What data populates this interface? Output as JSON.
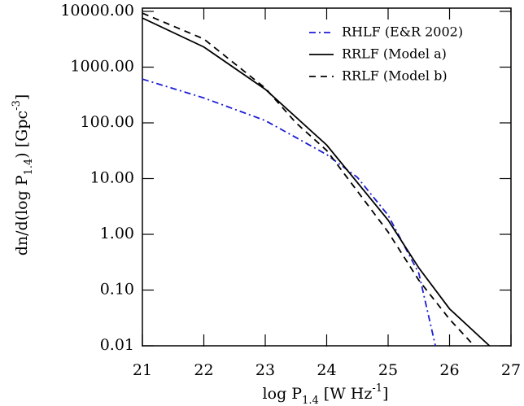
{
  "chart_data": {
    "type": "line",
    "xlabel": [
      "log P",
      "1.4",
      " [W Hz",
      "-1",
      "]"
    ],
    "ylabel": [
      "dn/d(log P",
      "1.4",
      ") [Gpc",
      "-3",
      "]"
    ],
    "xlim": [
      21,
      27
    ],
    "xticks": [
      21,
      22,
      23,
      24,
      25,
      26,
      27
    ],
    "ylim": [
      0.01,
      10000
    ],
    "log_y": true,
    "yticks": [
      {
        "value": 0.01,
        "label": "0.01"
      },
      {
        "value": 0.1,
        "label": "0.10"
      },
      {
        "value": 1,
        "label": "1.00"
      },
      {
        "value": 10,
        "label": "10.00"
      },
      {
        "value": 100,
        "label": "100.00"
      },
      {
        "value": 1000,
        "label": "1000.00"
      },
      {
        "value": 10000,
        "label": "10000.00"
      }
    ],
    "legend": "upper right",
    "series": [
      {
        "name": "RHLF (E&R 2002)",
        "color": "#1c1cd6",
        "dash": "dashdot",
        "x": [
          21,
          22,
          23,
          24,
          24.5,
          25,
          25.5,
          25.77
        ],
        "values": [
          610,
          280,
          110,
          27,
          10.5,
          2.2,
          0.2,
          0.01
        ]
      },
      {
        "name": "RRLF (Model a)",
        "color": "#000000",
        "dash": "solid",
        "x": [
          21,
          22,
          23,
          24,
          25,
          25.5,
          26,
          26.65
        ],
        "values": [
          7600,
          2300,
          400,
          40,
          1.8,
          0.25,
          0.046,
          0.01
        ]
      },
      {
        "name": "RRLF (Model b)",
        "color": "#000000",
        "dash": "dashed",
        "x": [
          21,
          22,
          23,
          23.5,
          24,
          25,
          25.5,
          26,
          26.4
        ],
        "values": [
          9300,
          3200,
          420,
          100,
          32,
          1.1,
          0.15,
          0.03,
          0.01
        ]
      }
    ]
  }
}
